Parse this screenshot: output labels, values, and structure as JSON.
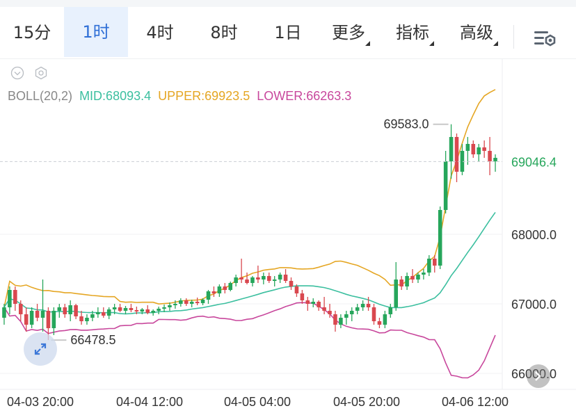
{
  "tabs": [
    {
      "label": "15分",
      "active": false,
      "dropdown": false
    },
    {
      "label": "1时",
      "active": true,
      "dropdown": false
    },
    {
      "label": "4时",
      "active": false,
      "dropdown": false
    },
    {
      "label": "8时",
      "active": false,
      "dropdown": false
    },
    {
      "label": "1日",
      "active": false,
      "dropdown": false
    },
    {
      "label": "更多",
      "active": false,
      "dropdown": true
    },
    {
      "label": "指标",
      "active": false,
      "dropdown": true
    },
    {
      "label": "高级",
      "active": false,
      "dropdown": true
    }
  ],
  "indicator": {
    "name": "BOLL(20,2)",
    "mid": "MID:68093.4",
    "upper": "UPPER:69923.5",
    "lower": "LOWER:66263.3",
    "colors": {
      "mid": "#3bbf9f",
      "upper": "#e5a623",
      "lower": "#c8479c",
      "name": "#888888"
    }
  },
  "colors": {
    "up": "#26a65b",
    "down": "#d9484f",
    "active_tab": "#2f6fd6"
  },
  "chart_data": {
    "type": "candlestick",
    "x_ticks": [
      "04-03 20:00",
      "04-04 12:00",
      "04-05 04:00",
      "04-05 20:00",
      "04-06 12:00"
    ],
    "y_ticks": [
      66000.0,
      67000.0,
      68000.0
    ],
    "y_tick_labels": [
      "66000.0",
      "67000.0",
      "68000.0"
    ],
    "ylim": [
      65700,
      70700
    ],
    "last_price": 69046.4,
    "last_price_label": "69046.4",
    "max_label": "69583.0",
    "min_label": "66478.5",
    "max": 69583.0,
    "min": 66478.5,
    "candles": [
      [
        66800,
        67000,
        66700,
        66950
      ],
      [
        66950,
        67250,
        66850,
        67200
      ],
      [
        67200,
        67250,
        66900,
        67000
      ],
      [
        67000,
        67050,
        66750,
        66850
      ],
      [
        66850,
        66950,
        66600,
        66700
      ],
      [
        66700,
        66950,
        66650,
        66900
      ],
      [
        66900,
        67000,
        66750,
        66800
      ],
      [
        66800,
        67350,
        66600,
        66900
      ],
      [
        66900,
        66950,
        66478.5,
        66650
      ],
      [
        66650,
        66950,
        66550,
        66900
      ],
      [
        66900,
        67000,
        66800,
        66950
      ],
      [
        66950,
        67000,
        66800,
        66850
      ],
      [
        66850,
        67050,
        66750,
        66980
      ],
      [
        66980,
        67000,
        66780,
        66820
      ],
      [
        66820,
        66900,
        66700,
        66750
      ],
      [
        66750,
        66850,
        66700,
        66800
      ],
      [
        66800,
        66900,
        66750,
        66850
      ],
      [
        66850,
        66950,
        66800,
        66880
      ],
      [
        66880,
        66950,
        66800,
        66830
      ],
      [
        66830,
        66950,
        66780,
        66920
      ],
      [
        66920,
        67000,
        66850,
        66950
      ],
      [
        66950,
        67000,
        66880,
        66900
      ],
      [
        66900,
        66970,
        66850,
        66940
      ],
      [
        66940,
        67000,
        66880,
        66910
      ],
      [
        66910,
        66960,
        66850,
        66890
      ],
      [
        66890,
        66940,
        66850,
        66920
      ],
      [
        66920,
        66980,
        66850,
        66870
      ],
      [
        66870,
        66920,
        66830,
        66900
      ],
      [
        66900,
        66960,
        66850,
        66930
      ],
      [
        66930,
        66990,
        66880,
        66950
      ],
      [
        66950,
        67020,
        66900,
        66980
      ],
      [
        66980,
        67050,
        66930,
        67000
      ],
      [
        67000,
        67080,
        66960,
        67050
      ],
      [
        67050,
        67080,
        66970,
        67000
      ],
      [
        67000,
        67060,
        66950,
        67030
      ],
      [
        67030,
        67090,
        66980,
        67010
      ],
      [
        67010,
        67080,
        66980,
        67060
      ],
      [
        67060,
        67200,
        67000,
        67180
      ],
      [
        67180,
        67250,
        67100,
        67150
      ],
      [
        67150,
        67280,
        67100,
        67250
      ],
      [
        67250,
        67300,
        67150,
        67200
      ],
      [
        67200,
        67320,
        67180,
        67300
      ],
      [
        67300,
        67420,
        67250,
        67380
      ],
      [
        67380,
        67650,
        67300,
        67350
      ],
      [
        67350,
        67450,
        67280,
        67300
      ],
      [
        67300,
        67400,
        67250,
        67380
      ],
      [
        67380,
        67550,
        67300,
        67350
      ],
      [
        67350,
        67450,
        67280,
        67400
      ],
      [
        67400,
        67450,
        67300,
        67330
      ],
      [
        67330,
        67400,
        67250,
        67350
      ],
      [
        67350,
        67450,
        67300,
        67420
      ],
      [
        67420,
        67500,
        67300,
        67330
      ],
      [
        67330,
        67380,
        67200,
        67250
      ],
      [
        67250,
        67280,
        67100,
        67150
      ],
      [
        67150,
        67200,
        67000,
        67050
      ],
      [
        67050,
        67100,
        66900,
        67000
      ],
      [
        67000,
        67080,
        66950,
        67030
      ],
      [
        67030,
        67050,
        66900,
        66950
      ],
      [
        66950,
        67100,
        66850,
        66900
      ],
      [
        66900,
        67000,
        66800,
        66850
      ],
      [
        66850,
        66900,
        66600,
        66700
      ],
      [
        66700,
        66850,
        66650,
        66800
      ],
      [
        66800,
        66900,
        66700,
        66850
      ],
      [
        66850,
        66950,
        66750,
        66900
      ],
      [
        66900,
        67000,
        66850,
        66950
      ],
      [
        66950,
        67050,
        66900,
        67000
      ],
      [
        67000,
        67100,
        66900,
        66950
      ],
      [
        66950,
        67000,
        66700,
        66750
      ],
      [
        66750,
        66800,
        66650,
        66700
      ],
      [
        66700,
        66900,
        66650,
        66850
      ],
      [
        66850,
        67000,
        66800,
        66950
      ],
      [
        66950,
        67600,
        66900,
        67350
      ],
      [
        67350,
        67400,
        67200,
        67250
      ],
      [
        67250,
        67450,
        67200,
        67400
      ],
      [
        67400,
        67500,
        67300,
        67350
      ],
      [
        67350,
        67450,
        67300,
        67420
      ],
      [
        67420,
        67500,
        67350,
        67450
      ],
      [
        67450,
        67700,
        67400,
        67650
      ],
      [
        67650,
        67700,
        67450,
        67550
      ],
      [
        67550,
        68400,
        67500,
        68350
      ],
      [
        68350,
        69200,
        68300,
        69050
      ],
      [
        69050,
        69583,
        68800,
        69400
      ],
      [
        69400,
        69450,
        68750,
        68900
      ],
      [
        68900,
        69300,
        68850,
        69200
      ],
      [
        69200,
        69400,
        69000,
        69300
      ],
      [
        69300,
        69350,
        69100,
        69150
      ],
      [
        69150,
        69300,
        69050,
        69250
      ],
      [
        69250,
        69350,
        69100,
        69200
      ],
      [
        69200,
        69400,
        68850,
        69050
      ],
      [
        69050,
        69150,
        68900,
        69100
      ]
    ]
  }
}
